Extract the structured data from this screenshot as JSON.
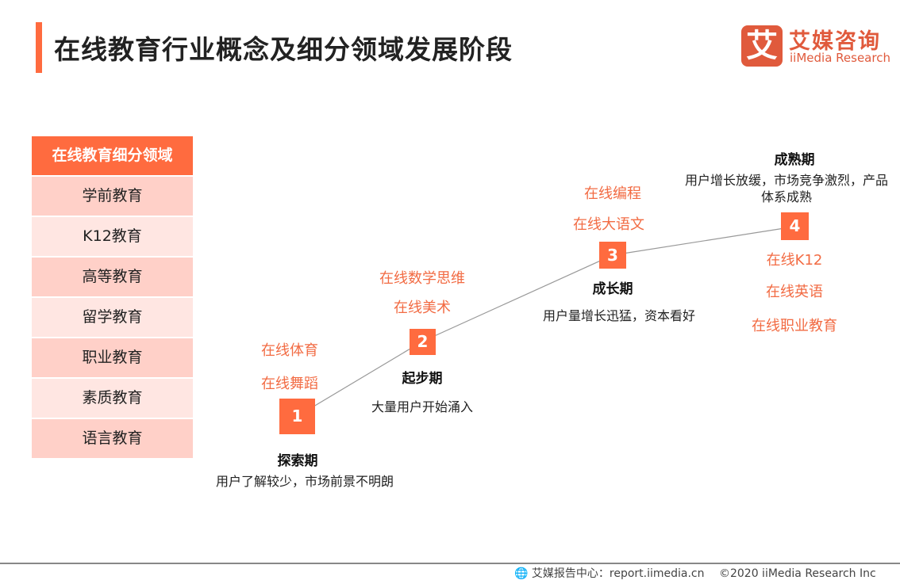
{
  "title": "在线教育行业概念及细分领域发展阶段",
  "logo": {
    "mark": "艾",
    "cn": "艾媒咨询",
    "en": "iiMedia Research"
  },
  "segments": {
    "header": "在线教育细分领域",
    "items": [
      "学前教育",
      "K12教育",
      "高等教育",
      "留学教育",
      "职业教育",
      "素质教育",
      "语言教育"
    ]
  },
  "stages": [
    {
      "num": "1",
      "name": "探索期",
      "desc": "用户了解较少，市场前景不明朗",
      "tags": [
        "在线体育",
        "在线舞蹈"
      ]
    },
    {
      "num": "2",
      "name": "起步期",
      "desc": "大量用户开始涌入",
      "tags": [
        "在线数学思维",
        "在线美术"
      ]
    },
    {
      "num": "3",
      "name": "成长期",
      "desc": "用户量增长迅猛，资本看好",
      "tags": [
        "在线编程",
        "在线大语文"
      ]
    },
    {
      "num": "4",
      "name": "成熟期",
      "desc": "用户增长放缓，市场竞争激烈，产品体系成熟",
      "tags": [
        "在线K12",
        "在线英语",
        "在线职业教育"
      ]
    }
  ],
  "footer": {
    "source": "艾媒报告中心：report.iimedia.cn",
    "copyright": "©2020  iiMedia Research  Inc"
  },
  "colors": {
    "accent": "#FF6B3F",
    "row_dark": "#FFD0C8",
    "row_light": "#FFE6E2",
    "tag_text": "#F26B43"
  }
}
